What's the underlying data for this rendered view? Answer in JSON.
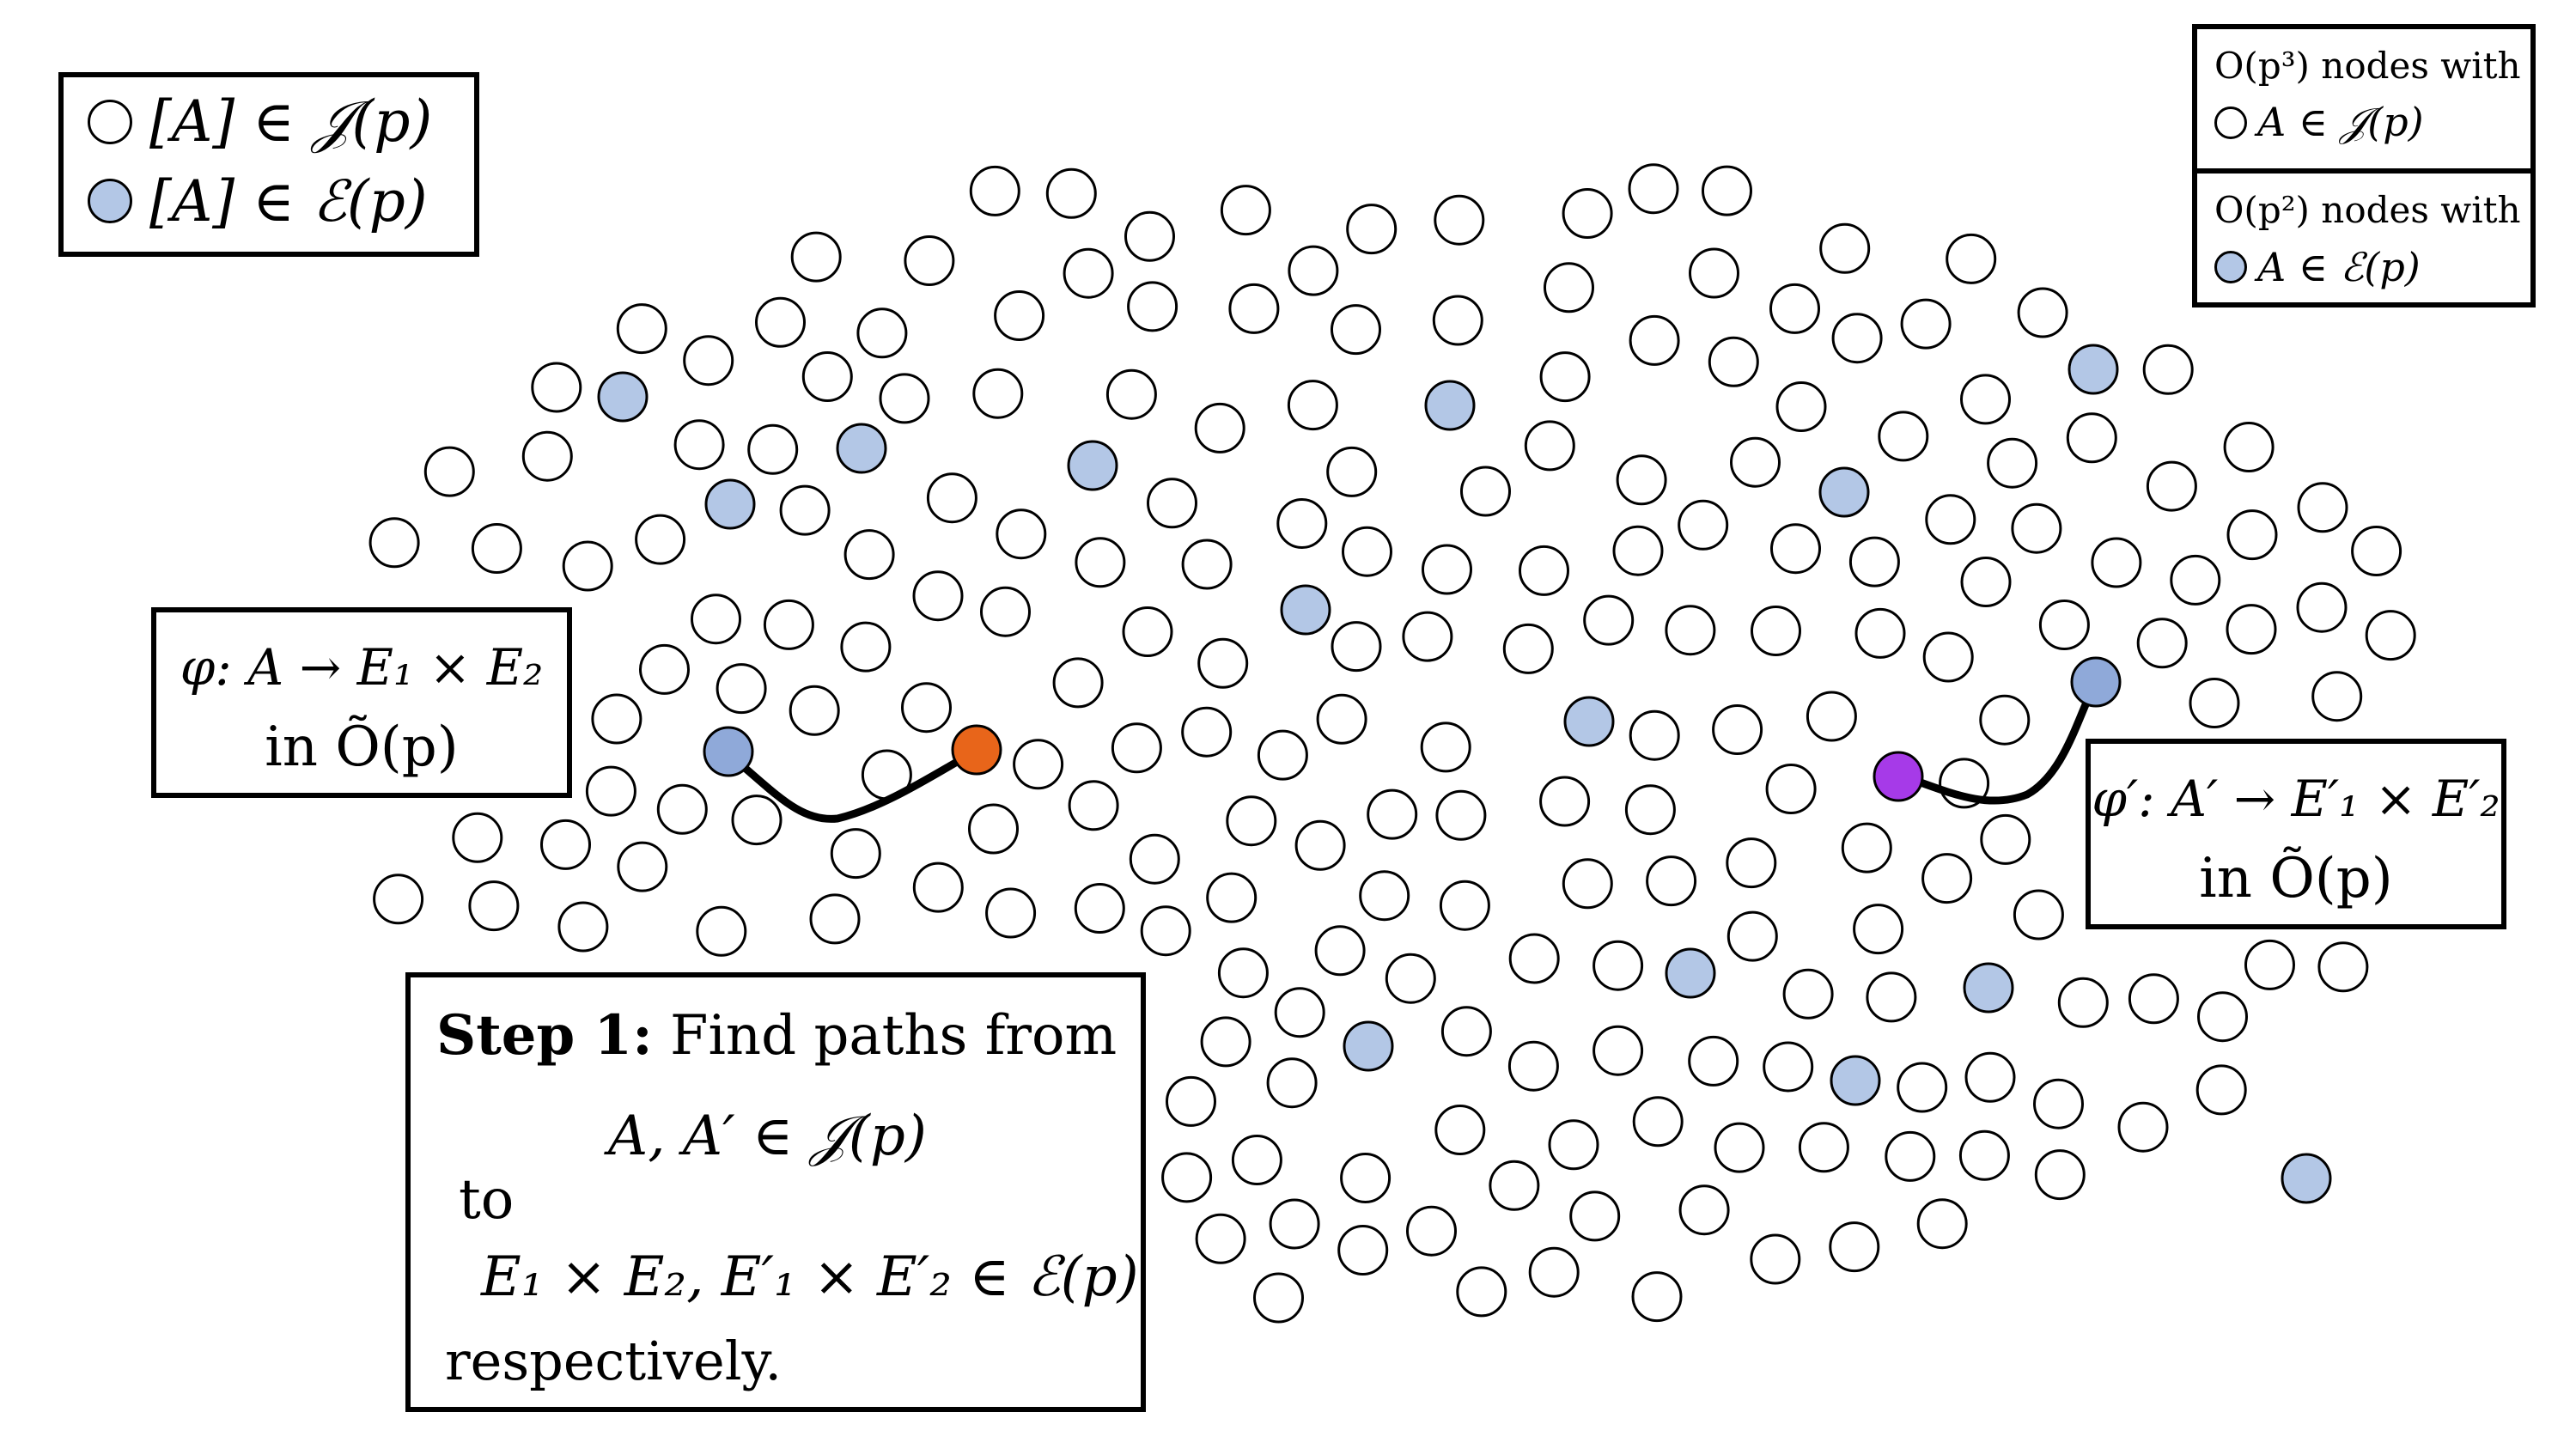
{
  "legend_left": {
    "items": [
      {
        "symbol": "white-node",
        "label": "[A] ∈ 𝒥(p)"
      },
      {
        "symbol": "blue-node",
        "label": "[A] ∈ ℰ(p)"
      }
    ]
  },
  "legend_right": {
    "top": {
      "line1": "O(p³) nodes with",
      "line2": "A ∈ 𝒥(p)"
    },
    "bottom": {
      "line1": "O(p²) nodes with",
      "line2": "A ∈ ℰ(p)"
    }
  },
  "left_isogeny": {
    "line1": "φ: A → E₁ × E₂",
    "line2": "in Õ(p)"
  },
  "right_isogeny": {
    "line1": "φ′: A′ → E′₁ × E′₂",
    "line2": "in Õ(p)"
  },
  "step_box": {
    "heading": "Step 1:",
    "line1_rest": "Find paths from",
    "line2": "A, A′ ∈ 𝒥(p)",
    "line3": "to",
    "line4": "E₁ × E₂, E′₁ × E′₂ ∈ ℰ(p)",
    "line5": "respectively."
  },
  "colors": {
    "node_fill": "#ffffff",
    "node_stroke": "#000000",
    "special_node_fill": "#b3c7e6",
    "path_start_fill": "#8fa9d9",
    "orange_node": "#e8651a",
    "purple_node": "#a63ae8"
  }
}
